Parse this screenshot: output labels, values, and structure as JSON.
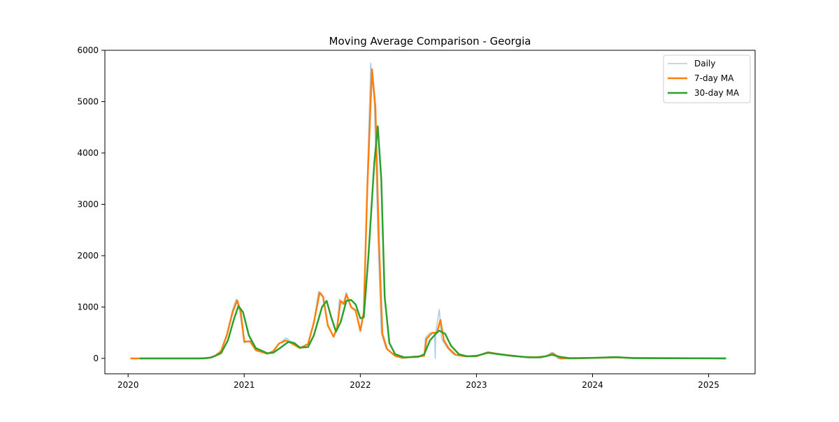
{
  "chart_data": {
    "type": "line",
    "title": "Moving Average Comparison - Georgia",
    "xlabel": "",
    "ylabel": "",
    "xlim": [
      2019.8,
      2025.4
    ],
    "ylim": [
      -300,
      6000
    ],
    "x_ticks": [
      2020,
      2021,
      2022,
      2023,
      2024,
      2025
    ],
    "y_ticks": [
      0,
      1000,
      2000,
      3000,
      4000,
      5000,
      6000
    ],
    "grid": false,
    "legend_position": "top-right",
    "series": [
      {
        "name": "Daily",
        "color": "#a6cde8",
        "points": [
          [
            2020.02,
            0
          ],
          [
            2020.6,
            0
          ],
          [
            2020.7,
            10
          ],
          [
            2020.75,
            60
          ],
          [
            2020.8,
            150
          ],
          [
            2020.85,
            480
          ],
          [
            2020.9,
            950
          ],
          [
            2020.93,
            1150
          ],
          [
            2020.96,
            950
          ],
          [
            2021.0,
            300
          ],
          [
            2021.05,
            350
          ],
          [
            2021.1,
            150
          ],
          [
            2021.2,
            90
          ],
          [
            2021.25,
            150
          ],
          [
            2021.3,
            280
          ],
          [
            2021.36,
            400
          ],
          [
            2021.42,
            300
          ],
          [
            2021.48,
            200
          ],
          [
            2021.55,
            280
          ],
          [
            2021.6,
            700
          ],
          [
            2021.64,
            1300
          ],
          [
            2021.67,
            1250
          ],
          [
            2021.72,
            650
          ],
          [
            2021.77,
            430
          ],
          [
            2021.8,
            600
          ],
          [
            2021.82,
            1150
          ],
          [
            2021.85,
            1050
          ],
          [
            2021.88,
            1280
          ],
          [
            2021.92,
            1000
          ],
          [
            2021.96,
            950
          ],
          [
            2022.0,
            520
          ],
          [
            2022.03,
            900
          ],
          [
            2022.06,
            3500
          ],
          [
            2022.09,
            5750
          ],
          [
            2022.12,
            5000
          ],
          [
            2022.15,
            2500
          ],
          [
            2022.18,
            500
          ],
          [
            2022.22,
            200
          ],
          [
            2022.3,
            60
          ],
          [
            2022.35,
            10
          ],
          [
            2022.45,
            40
          ],
          [
            2022.55,
            50
          ],
          [
            2022.56,
            400
          ],
          [
            2022.6,
            500
          ],
          [
            2022.64,
            480
          ],
          [
            2022.645,
            0
          ],
          [
            2022.65,
            520
          ],
          [
            2022.68,
            950
          ],
          [
            2022.7,
            380
          ],
          [
            2022.75,
            200
          ],
          [
            2022.8,
            80
          ],
          [
            2022.9,
            40
          ],
          [
            2023.0,
            40
          ],
          [
            2023.1,
            110
          ],
          [
            2023.2,
            90
          ],
          [
            2023.3,
            60
          ],
          [
            2023.4,
            30
          ],
          [
            2023.5,
            20
          ],
          [
            2023.6,
            40
          ],
          [
            2023.65,
            120
          ],
          [
            2023.7,
            0
          ],
          [
            2023.8,
            0
          ],
          [
            2024.0,
            10
          ],
          [
            2024.2,
            30
          ],
          [
            2024.3,
            10
          ],
          [
            2025.15,
            0
          ]
        ]
      },
      {
        "name": "7-day MA",
        "color": "#ff7f0e",
        "points": [
          [
            2020.02,
            0
          ],
          [
            2020.6,
            0
          ],
          [
            2020.7,
            10
          ],
          [
            2020.75,
            50
          ],
          [
            2020.8,
            140
          ],
          [
            2020.85,
            450
          ],
          [
            2020.9,
            900
          ],
          [
            2020.94,
            1130
          ],
          [
            2020.97,
            900
          ],
          [
            2021.0,
            330
          ],
          [
            2021.05,
            330
          ],
          [
            2021.1,
            160
          ],
          [
            2021.2,
            90
          ],
          [
            2021.25,
            140
          ],
          [
            2021.3,
            290
          ],
          [
            2021.36,
            350
          ],
          [
            2021.42,
            280
          ],
          [
            2021.48,
            200
          ],
          [
            2021.55,
            280
          ],
          [
            2021.6,
            700
          ],
          [
            2021.65,
            1280
          ],
          [
            2021.68,
            1200
          ],
          [
            2021.72,
            640
          ],
          [
            2021.77,
            420
          ],
          [
            2021.8,
            600
          ],
          [
            2021.83,
            1120
          ],
          [
            2021.86,
            1060
          ],
          [
            2021.88,
            1250
          ],
          [
            2021.92,
            1000
          ],
          [
            2021.96,
            930
          ],
          [
            2022.0,
            540
          ],
          [
            2022.03,
            900
          ],
          [
            2022.06,
            3300
          ],
          [
            2022.1,
            5630
          ],
          [
            2022.13,
            4900
          ],
          [
            2022.16,
            2300
          ],
          [
            2022.19,
            480
          ],
          [
            2022.23,
            180
          ],
          [
            2022.3,
            50
          ],
          [
            2022.36,
            10
          ],
          [
            2022.45,
            30
          ],
          [
            2022.55,
            50
          ],
          [
            2022.57,
            380
          ],
          [
            2022.62,
            500
          ],
          [
            2022.66,
            500
          ],
          [
            2022.69,
            750
          ],
          [
            2022.72,
            350
          ],
          [
            2022.76,
            200
          ],
          [
            2022.82,
            70
          ],
          [
            2022.9,
            40
          ],
          [
            2023.0,
            40
          ],
          [
            2023.1,
            120
          ],
          [
            2023.2,
            80
          ],
          [
            2023.3,
            55
          ],
          [
            2023.4,
            30
          ],
          [
            2023.5,
            20
          ],
          [
            2023.6,
            40
          ],
          [
            2023.66,
            100
          ],
          [
            2023.72,
            0
          ],
          [
            2023.85,
            0
          ],
          [
            2024.0,
            10
          ],
          [
            2024.2,
            20
          ],
          [
            2024.35,
            10
          ],
          [
            2025.15,
            0
          ]
        ]
      },
      {
        "name": "30-day MA",
        "color": "#2ca02c",
        "points": [
          [
            2020.1,
            0
          ],
          [
            2020.65,
            0
          ],
          [
            2020.72,
            20
          ],
          [
            2020.8,
            100
          ],
          [
            2020.86,
            350
          ],
          [
            2020.91,
            750
          ],
          [
            2020.95,
            1020
          ],
          [
            2020.99,
            900
          ],
          [
            2021.04,
            450
          ],
          [
            2021.1,
            200
          ],
          [
            2021.2,
            100
          ],
          [
            2021.25,
            110
          ],
          [
            2021.32,
            220
          ],
          [
            2021.38,
            320
          ],
          [
            2021.43,
            300
          ],
          [
            2021.48,
            210
          ],
          [
            2021.55,
            220
          ],
          [
            2021.6,
            450
          ],
          [
            2021.67,
            1000
          ],
          [
            2021.71,
            1120
          ],
          [
            2021.75,
            800
          ],
          [
            2021.79,
            520
          ],
          [
            2021.83,
            700
          ],
          [
            2021.88,
            1120
          ],
          [
            2021.92,
            1140
          ],
          [
            2021.96,
            1050
          ],
          [
            2022.0,
            780
          ],
          [
            2022.03,
            800
          ],
          [
            2022.07,
            2000
          ],
          [
            2022.12,
            3800
          ],
          [
            2022.15,
            4520
          ],
          [
            2022.18,
            3500
          ],
          [
            2022.21,
            1200
          ],
          [
            2022.25,
            300
          ],
          [
            2022.3,
            80
          ],
          [
            2022.38,
            20
          ],
          [
            2022.5,
            30
          ],
          [
            2022.55,
            80
          ],
          [
            2022.6,
            350
          ],
          [
            2022.65,
            480
          ],
          [
            2022.68,
            540
          ],
          [
            2022.73,
            480
          ],
          [
            2022.78,
            250
          ],
          [
            2022.85,
            80
          ],
          [
            2022.92,
            40
          ],
          [
            2023.0,
            50
          ],
          [
            2023.1,
            110
          ],
          [
            2023.2,
            80
          ],
          [
            2023.3,
            50
          ],
          [
            2023.45,
            20
          ],
          [
            2023.55,
            20
          ],
          [
            2023.65,
            70
          ],
          [
            2023.72,
            30
          ],
          [
            2023.8,
            5
          ],
          [
            2024.0,
            10
          ],
          [
            2024.2,
            25
          ],
          [
            2024.35,
            5
          ],
          [
            2025.15,
            0
          ]
        ]
      }
    ]
  }
}
